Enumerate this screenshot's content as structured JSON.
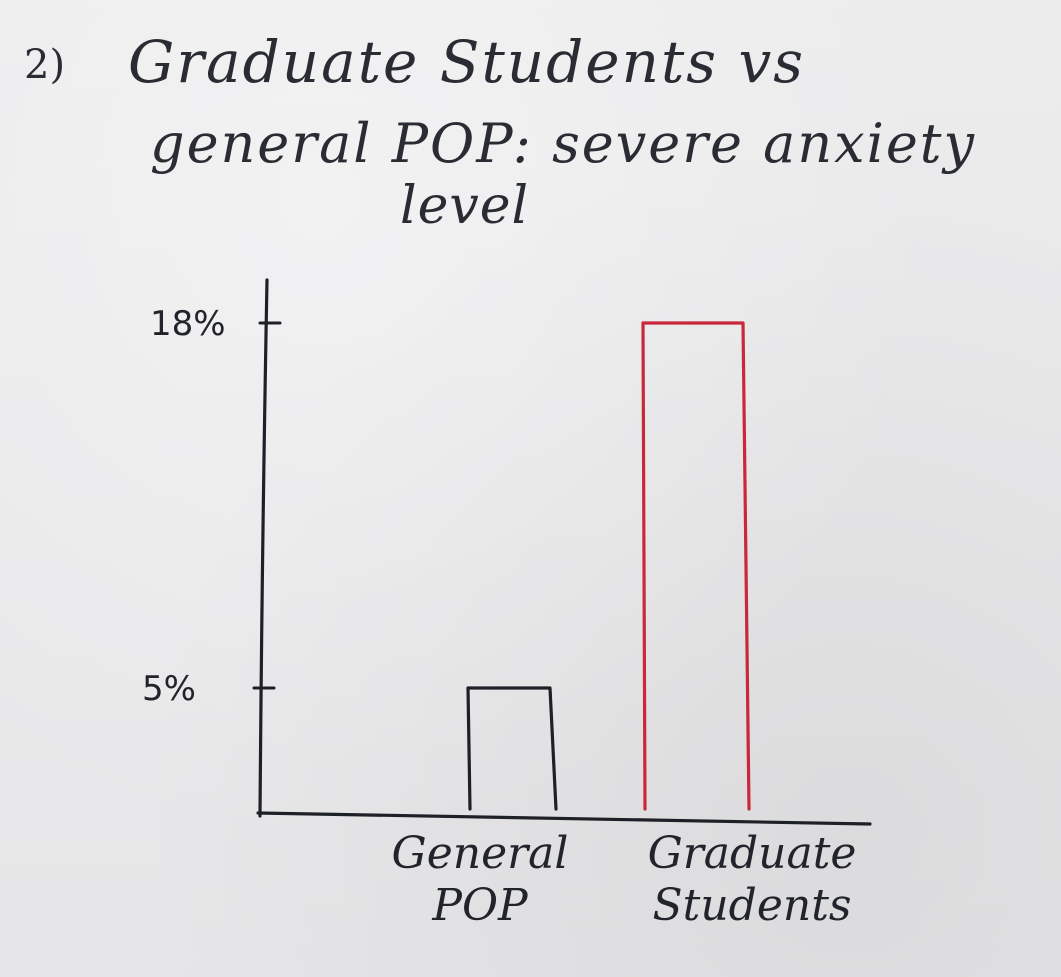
{
  "title": {
    "number": "2)",
    "line1": "Graduate Students vs",
    "line2": "general POP: severe anxiety",
    "line3": "level"
  },
  "chart_data": {
    "type": "bar",
    "title": "Graduate Students vs general POP: severe anxiety level",
    "categories": [
      "General POP",
      "Graduate Students"
    ],
    "category_lines": [
      [
        "General",
        "POP"
      ],
      [
        "Graduate",
        "Students"
      ]
    ],
    "values": [
      5,
      18
    ],
    "unit": "%",
    "yticks": [
      5,
      18
    ],
    "ytick_labels": [
      "5%",
      "18%"
    ],
    "ylim": [
      0,
      18
    ],
    "grid": false,
    "bar_colors": [
      "#1e2028",
      "#c8283a"
    ],
    "axis_color": "#1e2028",
    "legend": "none"
  }
}
